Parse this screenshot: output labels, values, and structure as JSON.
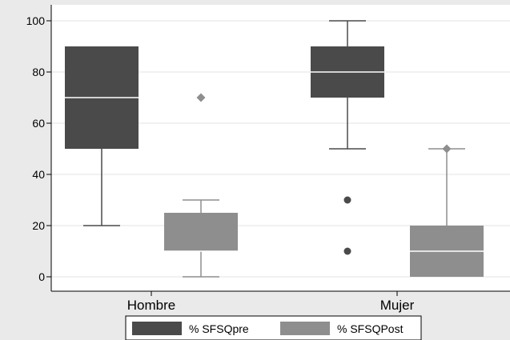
{
  "chart_data": {
    "type": "box",
    "title": "",
    "xlabel": "",
    "ylabel": "",
    "categories": [
      "Hombre",
      "Mujer"
    ],
    "ylim": [
      0,
      100
    ],
    "yticks": [
      0,
      20,
      40,
      60,
      80,
      100
    ],
    "grid": true,
    "legend_position": "bottom",
    "series": [
      {
        "name": "% SFSQpre",
        "color": "#4a4a4a",
        "boxes": [
          {
            "category": "Hombre",
            "whisker_low": 20,
            "q1": 50,
            "median": 70,
            "q3": 90,
            "whisker_high": 90,
            "outliers": []
          },
          {
            "category": "Mujer",
            "whisker_low": 50,
            "q1": 70,
            "median": 80,
            "q3": 90,
            "whisker_high": 100,
            "outliers": [
              30,
              10
            ]
          }
        ]
      },
      {
        "name": "% SFSQPost",
        "color": "#8e8e8e",
        "boxes": [
          {
            "category": "Hombre",
            "whisker_low": 0,
            "q1": 10,
            "median": 10,
            "q3": 25,
            "whisker_high": 30,
            "outliers": [
              70
            ]
          },
          {
            "category": "Mujer",
            "whisker_low": 0,
            "q1": 0,
            "median": 10,
            "q3": 20,
            "whisker_high": 50,
            "outliers": [
              50
            ]
          }
        ]
      }
    ]
  }
}
